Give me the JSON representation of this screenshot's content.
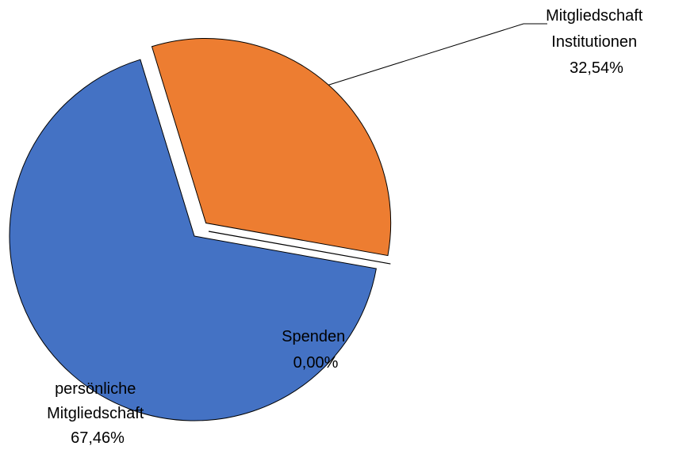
{
  "chart_data": {
    "type": "pie",
    "title": "",
    "slices": [
      {
        "label_lines": [
          "Mitgliedschaft",
          "Institutionen"
        ],
        "value_label": "32,54%",
        "value": 32.54,
        "color": "#ED7D31",
        "exploded": true
      },
      {
        "label_lines": [
          "Spenden"
        ],
        "value_label": "0,00%",
        "value": 0.0,
        "color": "#ED7D31",
        "exploded": true
      },
      {
        "label_lines": [
          "persönliche",
          "Mitgliedschaft"
        ],
        "value_label": "67,46%",
        "value": 67.46,
        "color": "#4472C4",
        "exploded": false
      }
    ]
  }
}
